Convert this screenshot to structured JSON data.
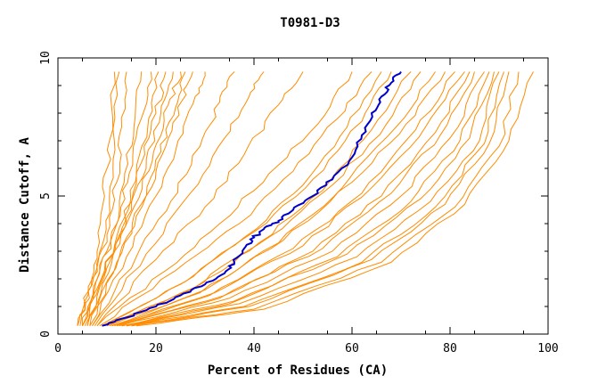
{
  "chart_data": {
    "type": "line",
    "title": "T0981-D3",
    "xlabel": "Percent of Residues (CA)",
    "ylabel": "Distance Cutoff, A",
    "xlim": [
      0,
      100
    ],
    "ylim": [
      0,
      10
    ],
    "x_ticks": [
      "0",
      "20",
      "40",
      "60",
      "80",
      "100"
    ],
    "y_ticks": [
      "0",
      "5",
      "10"
    ],
    "grid": false,
    "colors": {
      "background_models": "#FF8C00",
      "highlight": "#0000CC",
      "frame": "#000000"
    },
    "series": [
      {
        "values": [
          [
            4,
            0.3
          ],
          [
            6,
            1.5
          ],
          [
            8,
            3.0
          ],
          [
            9.5,
            5.0
          ],
          [
            10.5,
            7.0
          ],
          [
            11.5,
            9.5
          ]
        ]
      },
      {
        "values": [
          [
            4.5,
            0.3
          ],
          [
            7,
            1.8
          ],
          [
            9,
            3.2
          ],
          [
            10.5,
            5.0
          ],
          [
            11.5,
            7.0
          ],
          [
            12.5,
            9.5
          ]
        ]
      },
      {
        "values": [
          [
            4,
            0.3
          ],
          [
            7,
            2.0
          ],
          [
            10,
            3.6
          ],
          [
            12,
            5.5
          ],
          [
            13,
            7.5
          ],
          [
            14,
            9.5
          ]
        ]
      },
      {
        "values": [
          [
            5,
            0.3
          ],
          [
            8,
            2.0
          ],
          [
            11,
            3.5
          ],
          [
            13.5,
            5.5
          ],
          [
            15.5,
            7.5
          ],
          [
            17,
            9.5
          ]
        ]
      },
      {
        "values": [
          [
            5,
            0.3
          ],
          [
            8.5,
            2.2
          ],
          [
            12,
            4.0
          ],
          [
            14.5,
            5.8
          ],
          [
            17,
            7.8
          ],
          [
            19,
            9.5
          ]
        ]
      },
      {
        "values": [
          [
            5.5,
            0.3
          ],
          [
            9,
            2.0
          ],
          [
            13,
            3.8
          ],
          [
            16,
            5.8
          ],
          [
            18.5,
            7.8
          ],
          [
            20.5,
            9.5
          ]
        ]
      },
      {
        "values": [
          [
            5,
            0.3
          ],
          [
            9.5,
            2.3
          ],
          [
            13.5,
            4.2
          ],
          [
            17,
            6.2
          ],
          [
            20,
            8.0
          ],
          [
            22,
            9.5
          ]
        ]
      },
      {
        "values": [
          [
            6,
            0.3
          ],
          [
            10,
            2.4
          ],
          [
            14,
            4.2
          ],
          [
            18,
            6.0
          ],
          [
            21,
            8.0
          ],
          [
            23.5,
            9.5
          ]
        ]
      },
      {
        "values": [
          [
            6,
            0.3
          ],
          [
            11,
            2.6
          ],
          [
            15.5,
            4.6
          ],
          [
            19.5,
            6.6
          ],
          [
            22.5,
            8.3
          ],
          [
            25,
            9.5
          ]
        ]
      },
      {
        "values": [
          [
            6.5,
            0.3
          ],
          [
            12,
            2.6
          ],
          [
            17,
            4.7
          ],
          [
            21,
            6.6
          ],
          [
            24,
            8.2
          ],
          [
            26,
            9.5
          ]
        ]
      },
      {
        "values": [
          [
            6.5,
            0.3
          ],
          [
            12.5,
            2.8
          ],
          [
            18,
            5.0
          ],
          [
            22,
            6.8
          ],
          [
            25.5,
            8.5
          ],
          [
            27.5,
            9.5
          ]
        ]
      },
      {
        "values": [
          [
            7,
            0.3
          ],
          [
            14,
            2.8
          ],
          [
            20,
            5.0
          ],
          [
            24.5,
            7.0
          ],
          [
            28,
            8.6
          ],
          [
            30,
            9.5
          ]
        ]
      },
      {
        "values": [
          [
            7,
            0.3
          ],
          [
            16,
            2.8
          ],
          [
            23,
            4.8
          ],
          [
            29,
            6.8
          ],
          [
            33,
            8.4
          ],
          [
            36,
            9.5
          ]
        ]
      },
      {
        "values": [
          [
            7.5,
            0.3
          ],
          [
            18,
            2.9
          ],
          [
            27,
            5.1
          ],
          [
            34,
            7.1
          ],
          [
            39,
            8.6
          ],
          [
            42,
            9.5
          ]
        ]
      },
      {
        "values": [
          [
            8,
            0.3
          ],
          [
            20,
            2.7
          ],
          [
            30,
            4.6
          ],
          [
            38,
            6.5
          ],
          [
            45,
            8.3
          ],
          [
            50,
            9.5
          ]
        ]
      },
      {
        "values": [
          [
            8,
            0.3
          ],
          [
            22,
            2.3
          ],
          [
            33,
            4.0
          ],
          [
            43,
            5.8
          ],
          [
            53,
            7.6
          ],
          [
            60,
            9.5
          ]
        ]
      },
      {
        "values": [
          [
            8.5,
            0.3
          ],
          [
            24,
            2.3
          ],
          [
            37,
            4.0
          ],
          [
            48,
            5.9
          ],
          [
            57,
            7.8
          ],
          [
            64,
            9.5
          ]
        ]
      },
      {
        "values": [
          [
            9,
            0.3
          ],
          [
            25,
            1.8
          ],
          [
            38,
            3.5
          ],
          [
            50,
            5.4
          ],
          [
            59,
            7.5
          ],
          [
            66,
            9.5
          ]
        ]
      },
      {
        "values": [
          [
            9,
            0.3
          ],
          [
            26,
            1.9
          ],
          [
            40,
            3.7
          ],
          [
            52,
            5.6
          ],
          [
            62,
            7.7
          ],
          [
            68,
            9.5
          ]
        ]
      },
      {
        "values": [
          [
            10,
            0.3
          ],
          [
            27,
            1.6
          ],
          [
            41,
            3.3
          ],
          [
            54,
            5.2
          ],
          [
            64,
            7.4
          ],
          [
            72,
            9.5
          ]
        ]
      },
      {
        "values": [
          [
            10,
            0.3
          ],
          [
            28,
            1.7
          ],
          [
            43,
            3.5
          ],
          [
            56,
            5.4
          ],
          [
            67,
            7.6
          ],
          [
            74,
            9.5
          ]
        ]
      },
      {
        "values": [
          [
            10.5,
            0.3
          ],
          [
            29,
            1.5
          ],
          [
            45,
            3.3
          ],
          [
            58,
            5.3
          ],
          [
            69,
            7.5
          ],
          [
            77,
            9.5
          ]
        ]
      },
      {
        "values": [
          [
            11,
            0.3
          ],
          [
            30,
            1.6
          ],
          [
            46,
            3.4
          ],
          [
            60,
            5.5
          ],
          [
            71,
            7.6
          ],
          [
            79,
            9.5
          ]
        ]
      },
      {
        "values": [
          [
            11,
            0.3
          ],
          [
            31,
            1.4
          ],
          [
            48,
            3.1
          ],
          [
            62,
            5.1
          ],
          [
            73,
            7.4
          ],
          [
            81,
            9.5
          ]
        ]
      },
      {
        "values": [
          [
            11.5,
            0.3
          ],
          [
            32,
            1.5
          ],
          [
            50,
            3.2
          ],
          [
            64,
            5.3
          ],
          [
            75,
            7.5
          ],
          [
            83,
            9.5
          ]
        ]
      },
      {
        "values": [
          [
            12,
            0.3
          ],
          [
            33,
            1.3
          ],
          [
            52,
            3.0
          ],
          [
            66,
            5.0
          ],
          [
            77,
            7.3
          ],
          [
            84,
            9.5
          ]
        ]
      },
      {
        "values": [
          [
            12,
            0.3
          ],
          [
            34,
            1.4
          ],
          [
            54,
            3.1
          ],
          [
            68,
            5.1
          ],
          [
            78,
            7.2
          ],
          [
            85,
            9.5
          ]
        ]
      },
      {
        "values": [
          [
            12.5,
            0.3
          ],
          [
            35,
            1.3
          ],
          [
            56,
            3.0
          ],
          [
            70,
            5.0
          ],
          [
            80,
            7.1
          ],
          [
            87,
            9.5
          ]
        ]
      },
      {
        "values": [
          [
            13,
            0.3
          ],
          [
            35,
            1.1
          ],
          [
            57,
            2.8
          ],
          [
            72,
            4.8
          ],
          [
            82,
            7.0
          ],
          [
            88,
            9.5
          ]
        ]
      },
      {
        "values": [
          [
            13,
            0.3
          ],
          [
            36,
            1.2
          ],
          [
            59,
            2.9
          ],
          [
            74,
            4.9
          ],
          [
            84,
            7.1
          ],
          [
            89,
            9.5
          ]
        ]
      },
      {
        "values": [
          [
            14,
            0.3
          ],
          [
            37,
            1.1
          ],
          [
            61,
            2.8
          ],
          [
            76,
            4.8
          ],
          [
            86,
            7.0
          ],
          [
            90,
            9.5
          ]
        ]
      },
      {
        "values": [
          [
            14,
            0.3
          ],
          [
            38,
            1.0
          ],
          [
            62,
            2.6
          ],
          [
            77,
            4.6
          ],
          [
            87,
            6.9
          ],
          [
            91,
            9.5
          ]
        ]
      },
      {
        "values": [
          [
            15,
            0.3
          ],
          [
            39,
            1.0
          ],
          [
            64,
            2.7
          ],
          [
            79,
            4.7
          ],
          [
            88,
            6.9
          ],
          [
            92,
            9.5
          ]
        ]
      },
      {
        "values": [
          [
            15,
            0.3
          ],
          [
            40,
            0.9
          ],
          [
            66,
            2.6
          ],
          [
            81,
            4.6
          ],
          [
            90,
            6.8
          ],
          [
            94,
            9.5
          ]
        ]
      },
      {
        "values": [
          [
            16,
            0.3
          ],
          [
            42,
            0.9
          ],
          [
            68,
            2.6
          ],
          [
            83,
            4.7
          ],
          [
            92,
            7.0
          ],
          [
            97,
            9.5
          ]
        ]
      }
    ],
    "highlight_series": {
      "values": [
        [
          9,
          0.3
        ],
        [
          14,
          0.6
        ],
        [
          20,
          1.0
        ],
        [
          25,
          1.4
        ],
        [
          30,
          1.8
        ],
        [
          34,
          2.2
        ],
        [
          36,
          2.6
        ],
        [
          38,
          3.1
        ],
        [
          40,
          3.5
        ],
        [
          42,
          3.8
        ],
        [
          45,
          4.1
        ],
        [
          48,
          4.5
        ],
        [
          52,
          5.0
        ],
        [
          56,
          5.6
        ],
        [
          60,
          6.4
        ],
        [
          62,
          7.2
        ],
        [
          64,
          8.0
        ],
        [
          66,
          8.6
        ],
        [
          68,
          9.1
        ],
        [
          70,
          9.5
        ]
      ]
    }
  }
}
